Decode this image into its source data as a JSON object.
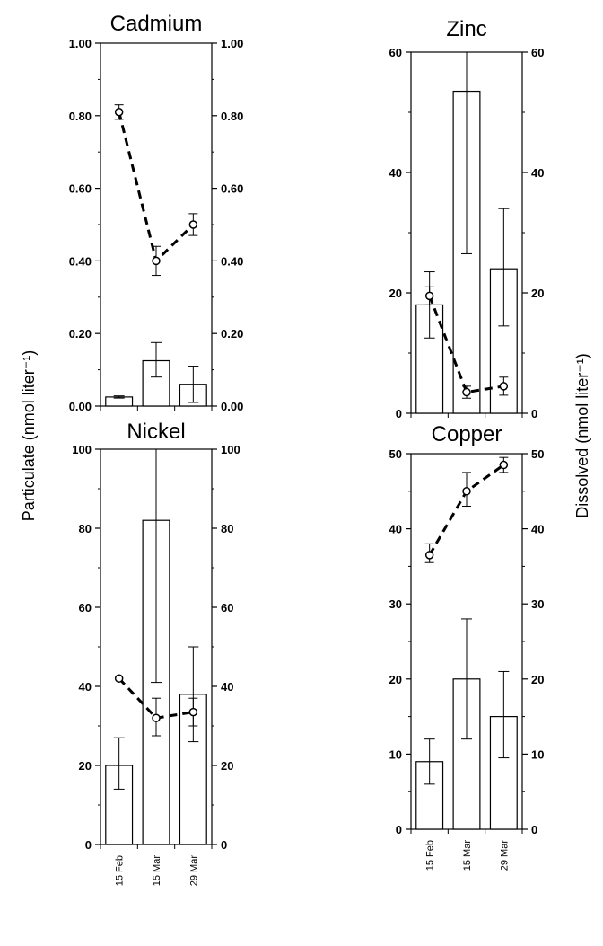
{
  "figure": {
    "left_axis_label": "Particulate (nmol liter⁻¹)",
    "right_axis_label": "Dissolved (nmol liter⁻¹)"
  },
  "chart_data": [
    {
      "type": "bar",
      "title": "Cadmium",
      "categories": [
        "15 Feb",
        "15 Mar",
        "29 Mar"
      ],
      "show_category_labels": false,
      "ylim": [
        0,
        1.0
      ],
      "yticks": [
        "0.00",
        "0.20",
        "0.40",
        "0.60",
        "0.80",
        "1.00"
      ],
      "series": [
        {
          "kind": "bar",
          "values": [
            0.025,
            0.125,
            0.06
          ],
          "err_low": [
            0.022,
            0.08,
            0.01
          ],
          "err_high": [
            0.028,
            0.175,
            0.11
          ]
        },
        {
          "kind": "line",
          "style": "dashed",
          "values": [
            0.81,
            0.4,
            0.5
          ],
          "err_low": [
            0.79,
            0.36,
            0.47
          ],
          "err_high": [
            0.83,
            0.44,
            0.53
          ]
        }
      ]
    },
    {
      "type": "bar",
      "title": "Zinc",
      "categories": [
        "15 Feb",
        "15 Mar",
        "29 Mar"
      ],
      "show_category_labels": false,
      "ylim": [
        0,
        60
      ],
      "yticks": [
        "0",
        "20",
        "40",
        "60"
      ],
      "series": [
        {
          "kind": "bar",
          "values": [
            18,
            53.5,
            24
          ],
          "err_low": [
            12.5,
            26.5,
            14.5
          ],
          "err_high": [
            23.5,
            60,
            34
          ]
        },
        {
          "kind": "line",
          "style": "dashed",
          "values": [
            19.5,
            3.5,
            4.5
          ],
          "err_low": [
            18,
            2.5,
            3
          ],
          "err_high": [
            21,
            4.5,
            6
          ]
        }
      ]
    },
    {
      "type": "bar",
      "title": "Nickel",
      "categories": [
        "15 Feb",
        "15 Mar",
        "29 Mar"
      ],
      "show_category_labels": true,
      "ylim": [
        0,
        100
      ],
      "yticks": [
        "0",
        "20",
        "40",
        "60",
        "80",
        "100"
      ],
      "series": [
        {
          "kind": "bar",
          "values": [
            20,
            82,
            38
          ],
          "err_low": [
            14,
            41,
            26
          ],
          "err_high": [
            27,
            100,
            50
          ]
        },
        {
          "kind": "line",
          "style": "dashed",
          "values": [
            42,
            32,
            33.5
          ],
          "err_low": [
            42,
            27.5,
            30
          ],
          "err_high": [
            42,
            37,
            37
          ]
        }
      ]
    },
    {
      "type": "bar",
      "title": "Copper",
      "categories": [
        "15 Feb",
        "15 Mar",
        "29 Mar"
      ],
      "show_category_labels": true,
      "ylim": [
        0,
        50
      ],
      "yticks": [
        "0",
        "10",
        "20",
        "30",
        "40",
        "50"
      ],
      "series": [
        {
          "kind": "bar",
          "values": [
            9,
            20,
            15
          ],
          "err_low": [
            6,
            12,
            9.5
          ],
          "err_high": [
            12,
            28,
            21
          ]
        },
        {
          "kind": "line",
          "style": "dashed",
          "values": [
            36.5,
            45,
            48.5
          ],
          "err_low": [
            35.5,
            43,
            47.5
          ],
          "err_high": [
            38,
            47.5,
            49.5
          ]
        }
      ]
    }
  ]
}
